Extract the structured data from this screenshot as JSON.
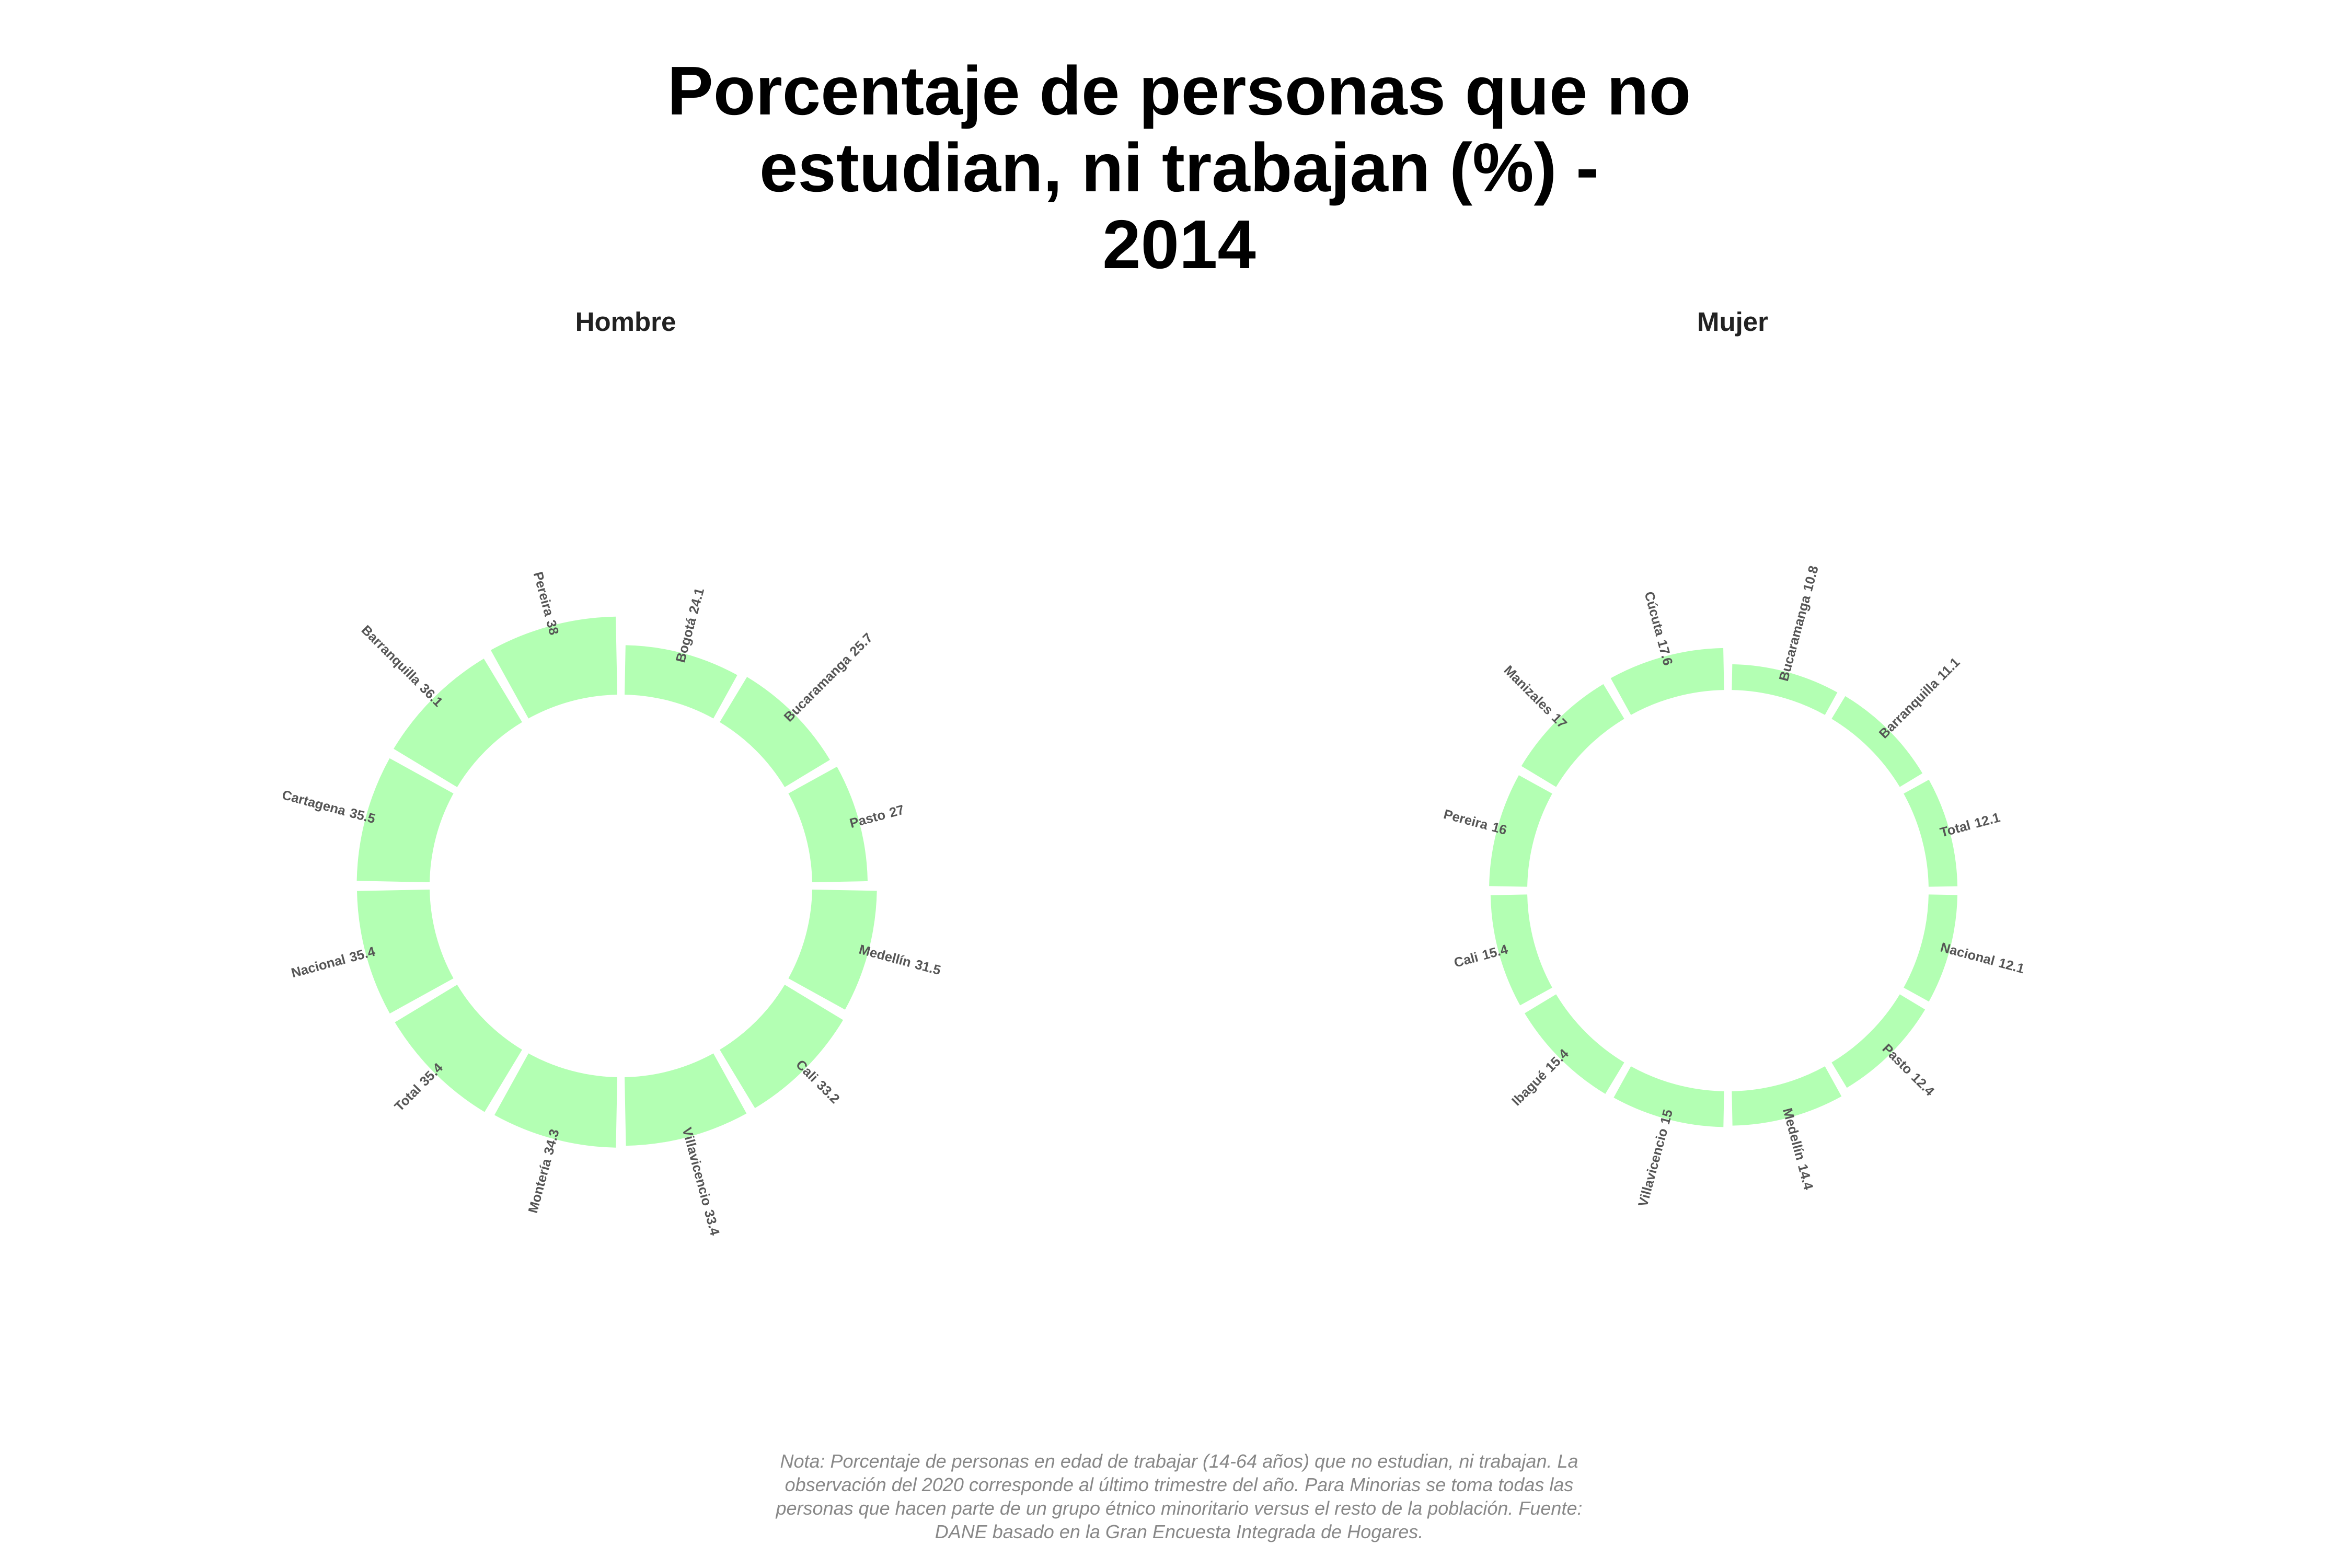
{
  "title": [
    "Porcentaje de personas que no",
    "estudian, ni trabajan (%) -",
    "2014"
  ],
  "note": [
    "Nota: Porcentaje de personas en edad de trabajar (14-64 años) que no estudian, ni trabajan. La",
    "observación del 2020 corresponde al último trimestre del año. Para Minorias se toma todas las",
    "personas que hacen parte de un grupo étnico minoritario versus el resto de la población. Fuente:",
    "DANE basado en la Gran Encuesta Integrada de Hogares."
  ],
  "chart_data": [
    {
      "type": "radial_bar",
      "title": "Hombre",
      "color": "#b3ffb3",
      "categories": [
        "Bogotá",
        "Bucaramanga",
        "Pasto",
        "Medellín",
        "Cali",
        "Villavicencio",
        "Montería",
        "Total",
        "Nacional",
        "Cartagena",
        "Barranquilla",
        "Pereira"
      ],
      "values": [
        24.1,
        25.7,
        27,
        31.5,
        33.2,
        33.4,
        34.3,
        35.4,
        35.4,
        35.5,
        36.1,
        38
      ]
    },
    {
      "type": "radial_bar",
      "title": "Mujer",
      "color": "#b3ffb3",
      "categories": [
        "Bucaramanga",
        "Barranquilla",
        "Total",
        "Nacional",
        "Pasto",
        "Medellín",
        "Villavicencio",
        "Ibagué",
        "Cali",
        "Pereira",
        "Manizales",
        "Cúcuta"
      ],
      "values": [
        10.8,
        11.1,
        12.1,
        12.1,
        12.4,
        14.4,
        15,
        15.4,
        15.4,
        16,
        17,
        17.6
      ]
    }
  ]
}
